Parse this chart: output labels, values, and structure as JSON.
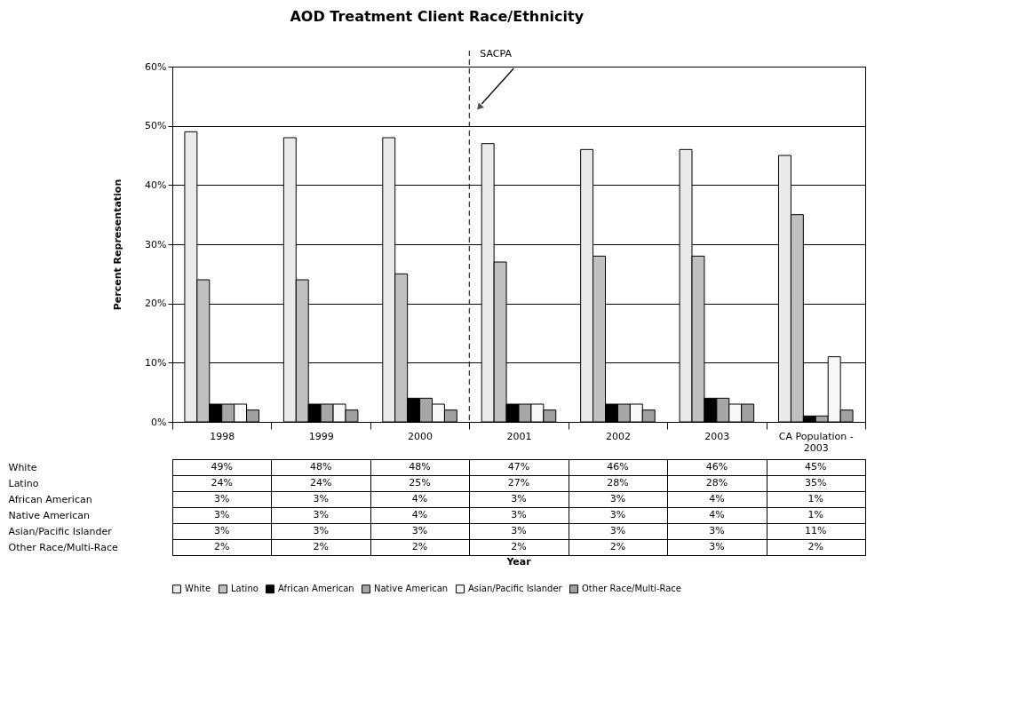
{
  "chart_data": {
    "type": "bar",
    "title": "AOD Treatment Client Race/Ethnicity",
    "annotations": [
      "Year"
    ],
    "ylabel": "Percent Representation",
    "categories": [
      "1998",
      "1999",
      "2000",
      "2001",
      "2002",
      "2003",
      "CA Population - 2003"
    ],
    "series": [
      {
        "name": "White",
        "color": "#eaeaea",
        "values": [
          49,
          48,
          48,
          47,
          46,
          46,
          45
        ],
        "value_labels": [
          "49%",
          "48%",
          "48%",
          "47%",
          "46%",
          "46%",
          "45%"
        ]
      },
      {
        "name": "Latino",
        "color": "#c0c0c0",
        "values": [
          24,
          24,
          25,
          27,
          28,
          28,
          35
        ],
        "value_labels": [
          "24%",
          "24%",
          "25%",
          "27%",
          "28%",
          "28%",
          "35%"
        ]
      },
      {
        "name": "African American",
        "color": "#000000",
        "values": [
          3,
          3,
          4,
          3,
          3,
          4,
          1
        ],
        "value_labels": [
          "3%",
          "3%",
          "4%",
          "3%",
          "3%",
          "4%",
          "1%"
        ]
      },
      {
        "name": "Native American",
        "color": "#a6a6a6",
        "values": [
          3,
          3,
          4,
          3,
          3,
          4,
          1
        ],
        "value_labels": [
          "3%",
          "3%",
          "4%",
          "3%",
          "3%",
          "4%",
          "1%"
        ]
      },
      {
        "name": "Asian/Pacific Islander",
        "color": "#f8f8f8",
        "values": [
          3,
          3,
          3,
          3,
          3,
          3,
          11
        ],
        "value_labels": [
          "3%",
          "3%",
          "3%",
          "3%",
          "3%",
          "3%",
          "11%"
        ]
      },
      {
        "name": "Other Race/Multi-Race",
        "color": "#a0a0a0",
        "values": [
          2,
          2,
          2,
          2,
          2,
          3,
          2
        ],
        "value_labels": [
          "2%",
          "2%",
          "2%",
          "2%",
          "2%",
          "3%",
          "2%"
        ]
      }
    ],
    "ylim": [
      0,
      60
    ],
    "yticks": [
      {
        "value": 0,
        "label": "0%"
      },
      {
        "value": 10,
        "label": "10%"
      },
      {
        "value": 20,
        "label": "20%"
      },
      {
        "value": 30,
        "label": "30%"
      },
      {
        "value": 40,
        "label": "40%"
      },
      {
        "value": 50,
        "label": "50%"
      },
      {
        "value": 60,
        "label": "60%"
      }
    ],
    "grid": "y",
    "legend": "bottom",
    "ref_lines": [
      {
        "axis": "x",
        "value": "2001",
        "label": "SACPA",
        "line_style": "dashed"
      }
    ]
  }
}
